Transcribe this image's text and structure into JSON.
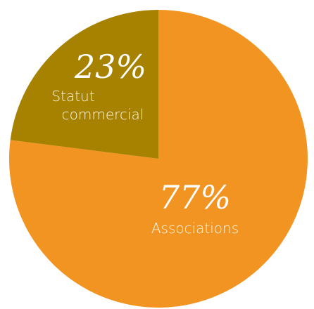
{
  "chart_data": {
    "type": "pie",
    "slices": [
      {
        "label": "Associations",
        "value": 77,
        "value_label": "77%",
        "color": "#f29421"
      },
      {
        "label_lines": [
          "Statut",
          "commercial"
        ],
        "value": 23,
        "value_label": "23%",
        "color": "#a78100"
      }
    ],
    "legend": "none"
  }
}
